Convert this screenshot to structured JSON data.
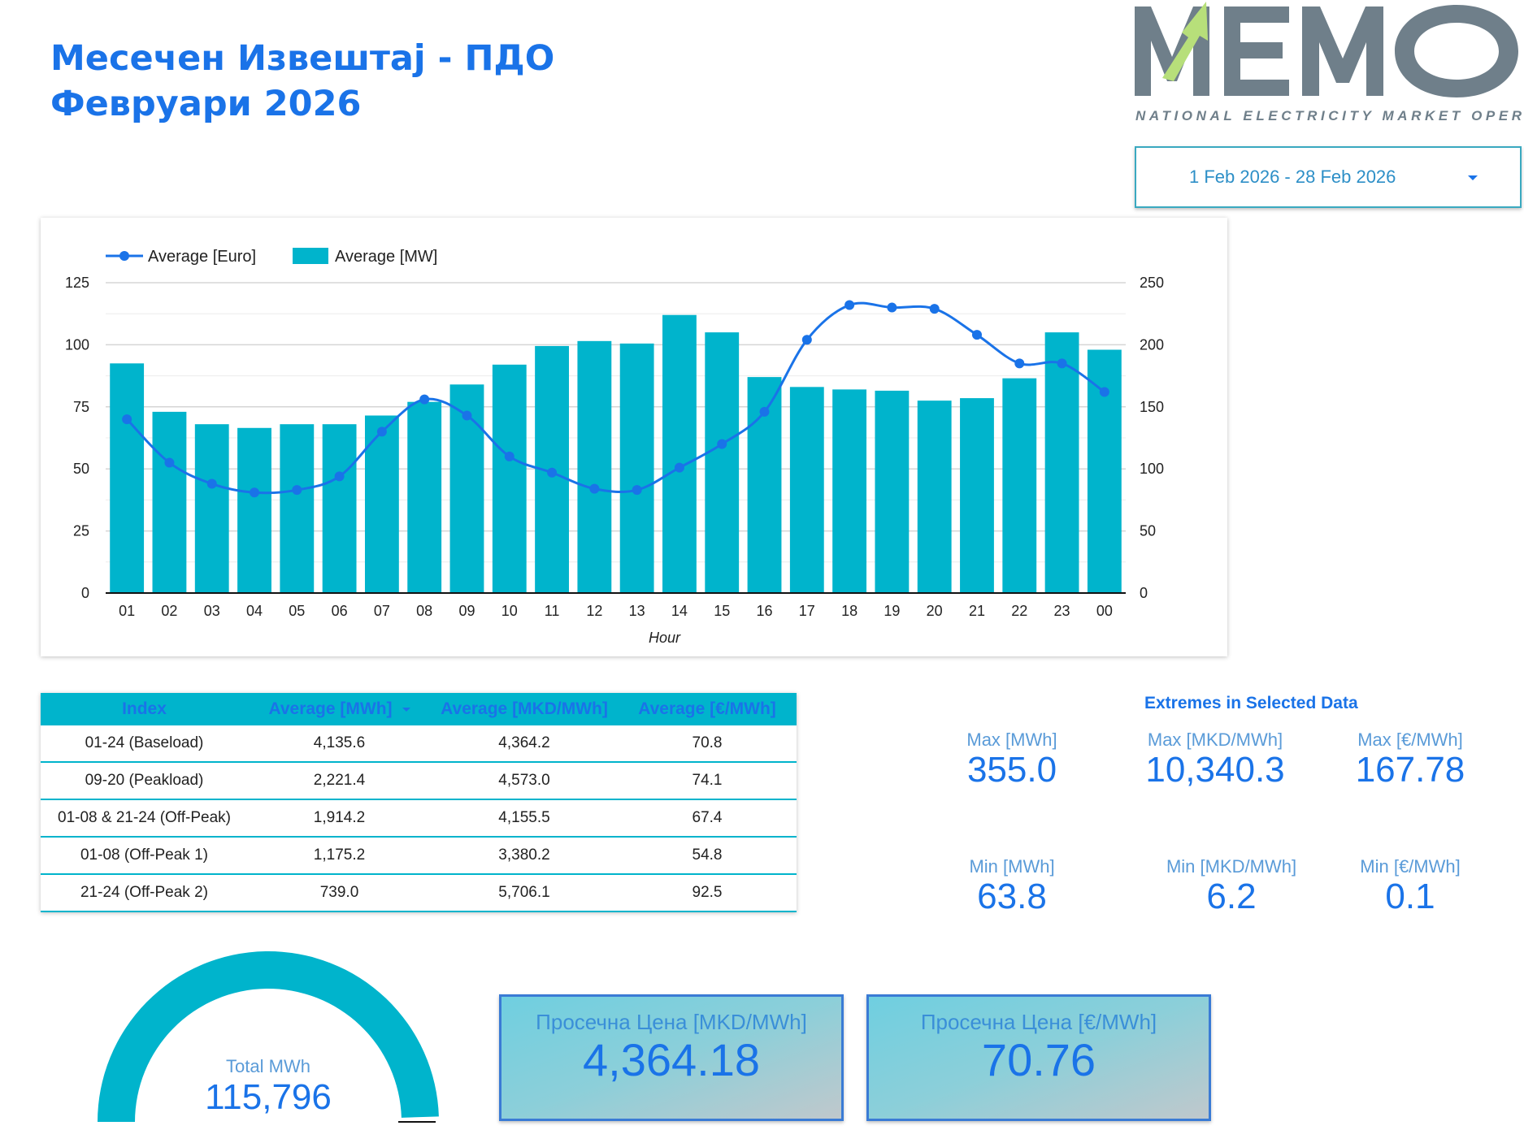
{
  "header": {
    "title_line1": "Месечен Извештај - ПДО",
    "title_line2": "Февруари 2026"
  },
  "logo": {
    "wordmark": "MEMO",
    "subtitle": "NATIONAL ELECTRICITY MARKET OPERATOR",
    "colors": {
      "gray": "#6f7f8a",
      "green": "#b7df7a"
    }
  },
  "date_range": {
    "label": "1 Feb 2026 - 28 Feb 2026"
  },
  "chart_data": {
    "type": "bar",
    "categories": [
      "01",
      "02",
      "03",
      "04",
      "05",
      "06",
      "07",
      "08",
      "09",
      "10",
      "11",
      "12",
      "13",
      "14",
      "15",
      "16",
      "17",
      "18",
      "19",
      "20",
      "21",
      "22",
      "23",
      "00"
    ],
    "xlabel": "Hour",
    "series": [
      {
        "name": "Average [MW]",
        "type": "bar",
        "axis": "right",
        "color": "#00b4cc",
        "values": [
          185,
          146,
          136,
          133,
          136,
          136,
          143,
          154,
          168,
          184,
          199,
          203,
          201,
          224,
          210,
          174,
          166,
          164,
          163,
          155,
          157,
          173,
          210,
          196
        ]
      },
      {
        "name": "Average [Euro]",
        "type": "line",
        "axis": "left",
        "color": "#1a73e8",
        "values": [
          70,
          52.5,
          44,
          40.5,
          41.5,
          47,
          65,
          78,
          71.5,
          55,
          48.5,
          42,
          41.5,
          50.5,
          60,
          73,
          102,
          116,
          115,
          114.5,
          104,
          92.5,
          92.5,
          81
        ]
      }
    ],
    "y_left": {
      "ylim": [
        0,
        125
      ],
      "ticks": [
        0,
        25,
        50,
        75,
        100,
        125
      ]
    },
    "y_right": {
      "ylim": [
        0,
        250
      ],
      "ticks": [
        0,
        50,
        100,
        150,
        200,
        250
      ]
    },
    "grid": true,
    "legend_position": "top-left"
  },
  "table": {
    "columns": [
      "Index",
      "Average [MWh]",
      "Average [MKD/MWh]",
      "Average [€/MWh]"
    ],
    "rows": [
      [
        "01-24 (Baseload)",
        "4,135.6",
        "4,364.2",
        "70.8"
      ],
      [
        "09-20 (Peakload)",
        "2,221.4",
        "4,573.0",
        "74.1"
      ],
      [
        "01-08 & 21-24 (Off-Peak)",
        "1,914.2",
        "4,155.5",
        "67.4"
      ],
      [
        "01-08 (Off-Peak 1)",
        "1,175.2",
        "3,380.2",
        "54.8"
      ],
      [
        "21-24 (Off-Peak 2)",
        "739.0",
        "5,706.1",
        "92.5"
      ]
    ]
  },
  "extremes": {
    "title": "Extremes in Selected Data",
    "max_mwh": {
      "label": "Max [MWh]",
      "value": "355.0"
    },
    "max_mkd": {
      "label": "Max [MKD/MWh]",
      "value": "10,340.3"
    },
    "max_eur": {
      "label": "Max [€/MWh]",
      "value": "167.78"
    },
    "min_mwh": {
      "label": "Min [MWh]",
      "value": "63.8"
    },
    "min_mkd": {
      "label": "Min [MKD/MWh]",
      "value": "6.2"
    },
    "min_eur": {
      "label": "Min [€/MWh]",
      "value": "0.1"
    }
  },
  "gauge": {
    "label": "Total MWh",
    "value": "115,796",
    "fill_fraction": 0.99
  },
  "price_cards": {
    "mkd": {
      "label": "Просечна Цена [MKD/MWh]",
      "value": "4,364.18"
    },
    "eur": {
      "label": "Просечна Цена [€/MWh]",
      "value": "70.76"
    }
  }
}
